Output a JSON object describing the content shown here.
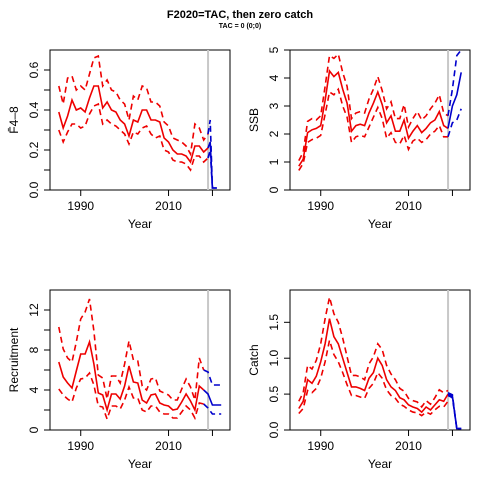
{
  "title": "F2020=TAC, then zero catch",
  "subtitle": "TAC = 0 (0;0)",
  "colors": {
    "historic": "#ee0000",
    "forecast": "#0000cc",
    "divider": "#c8c8c8"
  },
  "chart_data": [
    {
      "type": "line",
      "xlabel": "Year",
      "ylabel": "F̄4–8",
      "xlim": [
        1983,
        2024
      ],
      "ylim": [
        0,
        0.7
      ],
      "x_ticks": [
        "1990",
        "2010"
      ],
      "y_ticks": [
        "0.0",
        "",
        "0.2",
        "",
        "0.4",
        "",
        "0.6"
      ],
      "y_tick_values": [
        0,
        0.1,
        0.2,
        0.3,
        0.4,
        0.5,
        0.6
      ],
      "divider_x": 2019,
      "historic": {
        "years": [
          1985,
          1986,
          1987,
          1988,
          1989,
          1990,
          1991,
          1992,
          1993,
          1994,
          1995,
          1996,
          1997,
          1998,
          1999,
          2000,
          2001,
          2002,
          2003,
          2004,
          2005,
          2006,
          2007,
          2008,
          2009,
          2010,
          2011,
          2012,
          2013,
          2014,
          2015,
          2016,
          2017,
          2018,
          2019
        ],
        "median": [
          0.39,
          0.31,
          0.37,
          0.45,
          0.4,
          0.41,
          0.39,
          0.46,
          0.52,
          0.52,
          0.41,
          0.44,
          0.4,
          0.39,
          0.35,
          0.33,
          0.27,
          0.35,
          0.34,
          0.4,
          0.4,
          0.35,
          0.35,
          0.34,
          0.26,
          0.24,
          0.2,
          0.18,
          0.18,
          0.17,
          0.14,
          0.22,
          0.22,
          0.19,
          0.21
        ],
        "lower": [
          0.3,
          0.24,
          0.29,
          0.33,
          0.33,
          0.31,
          0.32,
          0.38,
          0.42,
          0.43,
          0.33,
          0.35,
          0.33,
          0.32,
          0.3,
          0.28,
          0.23,
          0.29,
          0.28,
          0.31,
          0.32,
          0.28,
          0.26,
          0.27,
          0.2,
          0.19,
          0.15,
          0.14,
          0.14,
          0.13,
          0.1,
          0.17,
          0.17,
          0.14,
          0.16
        ],
        "upper": [
          0.52,
          0.43,
          0.56,
          0.57,
          0.5,
          0.52,
          0.5,
          0.58,
          0.66,
          0.67,
          0.52,
          0.55,
          0.5,
          0.49,
          0.45,
          0.43,
          0.35,
          0.47,
          0.45,
          0.52,
          0.51,
          0.44,
          0.44,
          0.42,
          0.34,
          0.32,
          0.26,
          0.25,
          0.24,
          0.22,
          0.18,
          0.33,
          0.31,
          0.25,
          0.28
        ]
      },
      "forecast": {
        "years": [
          2019,
          2019.5,
          2020,
          2021
        ],
        "median": [
          0.21,
          0.24,
          0.01,
          0.01
        ],
        "lower": [
          0.16,
          0.2,
          0.01,
          0.01
        ],
        "upper": [
          0.28,
          0.35,
          0.01,
          0.01
        ]
      }
    },
    {
      "type": "line",
      "xlabel": "Year",
      "ylabel": "SSB",
      "xlim": [
        1983,
        2024
      ],
      "ylim": [
        0,
        5
      ],
      "x_ticks": [
        "1990",
        "2010"
      ],
      "y_ticks": [
        "0",
        "1",
        "2",
        "3",
        "4",
        "5"
      ],
      "y_tick_values": [
        0,
        1,
        2,
        3,
        4,
        5
      ],
      "divider_x": 2019,
      "historic": {
        "years": [
          1985,
          1986,
          1987,
          1988,
          1989,
          1990,
          1991,
          1992,
          1993,
          1994,
          1995,
          1996,
          1997,
          1998,
          1999,
          2000,
          2001,
          2002,
          2003,
          2004,
          2005,
          2006,
          2007,
          2008,
          2009,
          2010,
          2011,
          2012,
          2013,
          2014,
          2015,
          2016,
          2017,
          2018,
          2019
        ],
        "median": [
          0.85,
          1.1,
          2.05,
          2.15,
          2.2,
          2.3,
          3.2,
          4.25,
          4.05,
          4.2,
          3.6,
          3.1,
          2.1,
          2.3,
          2.35,
          2.3,
          2.75,
          3.1,
          3.5,
          3.05,
          2.4,
          2.65,
          2.1,
          2.1,
          2.5,
          1.85,
          2.1,
          2.3,
          2.05,
          2.2,
          2.4,
          2.5,
          2.8,
          2.3,
          2.2
        ],
        "lower": [
          0.7,
          0.95,
          1.7,
          1.8,
          1.85,
          1.95,
          2.7,
          3.5,
          3.4,
          3.6,
          3.0,
          2.6,
          1.7,
          1.9,
          1.95,
          1.9,
          2.25,
          2.6,
          2.95,
          2.55,
          1.85,
          2.05,
          1.7,
          1.65,
          1.95,
          1.45,
          1.75,
          1.85,
          1.7,
          1.8,
          2.0,
          2.1,
          2.3,
          1.9,
          1.9
        ],
        "upper": [
          1.05,
          1.35,
          2.45,
          2.55,
          2.5,
          2.65,
          3.7,
          4.8,
          4.7,
          4.85,
          4.2,
          3.7,
          2.55,
          2.75,
          2.8,
          2.75,
          3.25,
          3.6,
          4.05,
          3.55,
          2.9,
          3.15,
          2.55,
          2.55,
          3.05,
          2.25,
          2.55,
          2.8,
          2.5,
          2.65,
          2.9,
          3.1,
          3.4,
          2.75,
          2.65
        ]
      },
      "forecast": {
        "years": [
          2019,
          2020,
          2021,
          2022
        ],
        "median": [
          2.2,
          3.0,
          3.4,
          4.2
        ],
        "lower": [
          1.9,
          2.4,
          2.5,
          2.9
        ],
        "upper": [
          2.65,
          3.6,
          4.8,
          5.0
        ]
      }
    },
    {
      "type": "line",
      "xlabel": "Year",
      "ylabel": "Recruitment",
      "xlim": [
        1983,
        2024
      ],
      "ylim": [
        0,
        14
      ],
      "x_ticks": [
        "1990",
        "2010"
      ],
      "y_ticks": [
        "0",
        "",
        "4",
        "",
        "8",
        "",
        "12"
      ],
      "y_tick_values": [
        0,
        2,
        4,
        6,
        8,
        10,
        12
      ],
      "divider_x": 2019,
      "historic": {
        "years": [
          1985,
          1986,
          1987,
          1988,
          1989,
          1990,
          1991,
          1992,
          1993,
          1994,
          1995,
          1996,
          1997,
          1998,
          1999,
          2000,
          2001,
          2002,
          2003,
          2004,
          2005,
          2006,
          2007,
          2008,
          2009,
          2010,
          2011,
          2012,
          2013,
          2014,
          2015,
          2016,
          2017,
          2018
        ],
        "median": [
          6.8,
          5.3,
          4.7,
          4.2,
          5.9,
          7.6,
          7.6,
          8.8,
          6.6,
          3.7,
          3.5,
          2.0,
          3.6,
          3.6,
          3.1,
          4.4,
          6.4,
          4.8,
          4.7,
          3.0,
          2.7,
          3.5,
          3.6,
          2.7,
          2.5,
          2.4,
          2.0,
          2.1,
          2.8,
          3.6,
          2.9,
          2.0,
          4.4,
          4.0
        ],
        "lower": [
          4.1,
          3.5,
          3.1,
          2.8,
          4.2,
          5.1,
          5.2,
          5.7,
          4.5,
          2.4,
          2.3,
          1.1,
          2.4,
          2.4,
          2.1,
          3.0,
          4.3,
          3.2,
          3.2,
          2.0,
          1.8,
          2.4,
          2.4,
          1.8,
          1.6,
          1.6,
          1.2,
          1.2,
          1.8,
          2.4,
          2.0,
          1.2,
          2.7,
          2.6
        ],
        "upper": [
          10.3,
          8.1,
          7.2,
          6.8,
          8.8,
          11.1,
          11.8,
          13.1,
          9.9,
          5.5,
          5.2,
          3.1,
          5.4,
          5.4,
          4.7,
          6.6,
          8.9,
          7.0,
          6.9,
          4.4,
          4.0,
          5.1,
          5.2,
          3.9,
          3.7,
          3.5,
          3.0,
          3.0,
          4.1,
          5.1,
          4.3,
          3.0,
          7.2,
          6.0
        ]
      },
      "forecast": {
        "years": [
          2018,
          2019,
          2020,
          2022
        ],
        "median": [
          4.0,
          3.6,
          2.5,
          2.5
        ],
        "lower": [
          2.6,
          2.2,
          1.6,
          1.6
        ],
        "upper": [
          6.0,
          5.8,
          4.5,
          4.5
        ]
      }
    },
    {
      "type": "line",
      "xlabel": "Year",
      "ylabel": "Catch",
      "xlim": [
        1983,
        2024
      ],
      "ylim": [
        0,
        1.95
      ],
      "x_ticks": [
        "1990",
        "2010"
      ],
      "y_ticks": [
        "0.0",
        "0.5",
        "1.0",
        "1.5"
      ],
      "y_tick_values": [
        0,
        0.5,
        1.0,
        1.5
      ],
      "divider_x": 2019,
      "historic": {
        "years": [
          1985,
          1986,
          1987,
          1988,
          1989,
          1990,
          1991,
          1992,
          1993,
          1994,
          1995,
          1996,
          1997,
          1998,
          1999,
          2000,
          2001,
          2002,
          2003,
          2004,
          2005,
          2006,
          2007,
          2008,
          2009,
          2010,
          2011,
          2012,
          2013,
          2014,
          2015,
          2016,
          2017,
          2018,
          2019
        ],
        "median": [
          0.3,
          0.4,
          0.7,
          0.65,
          0.75,
          0.95,
          1.2,
          1.55,
          1.3,
          1.2,
          1.0,
          0.8,
          0.6,
          0.6,
          0.58,
          0.55,
          0.72,
          0.8,
          1.0,
          0.9,
          0.7,
          0.6,
          0.55,
          0.45,
          0.42,
          0.35,
          0.32,
          0.3,
          0.25,
          0.32,
          0.28,
          0.35,
          0.42,
          0.4,
          0.5
        ],
        "lower": [
          0.23,
          0.3,
          0.55,
          0.52,
          0.58,
          0.72,
          0.95,
          1.25,
          1.05,
          0.95,
          0.8,
          0.63,
          0.48,
          0.48,
          0.46,
          0.44,
          0.58,
          0.65,
          0.8,
          0.72,
          0.56,
          0.48,
          0.44,
          0.36,
          0.33,
          0.28,
          0.25,
          0.24,
          0.2,
          0.25,
          0.22,
          0.28,
          0.33,
          0.32,
          0.4
        ],
        "upper": [
          0.4,
          0.52,
          0.9,
          0.85,
          0.97,
          1.2,
          1.55,
          1.85,
          1.62,
          1.5,
          1.28,
          1.02,
          0.76,
          0.76,
          0.74,
          0.7,
          0.92,
          1.02,
          1.2,
          1.12,
          0.9,
          0.78,
          0.7,
          0.58,
          0.54,
          0.44,
          0.41,
          0.39,
          0.32,
          0.41,
          0.36,
          0.45,
          0.56,
          0.52,
          0.55
        ]
      },
      "forecast": {
        "years": [
          2019,
          2020,
          2021,
          2022
        ],
        "median": [
          0.5,
          0.47,
          0.02,
          0.02
        ],
        "lower": [
          0.48,
          0.45,
          0.02,
          0.02
        ],
        "upper": [
          0.52,
          0.49,
          0.02,
          0.02
        ]
      }
    }
  ]
}
